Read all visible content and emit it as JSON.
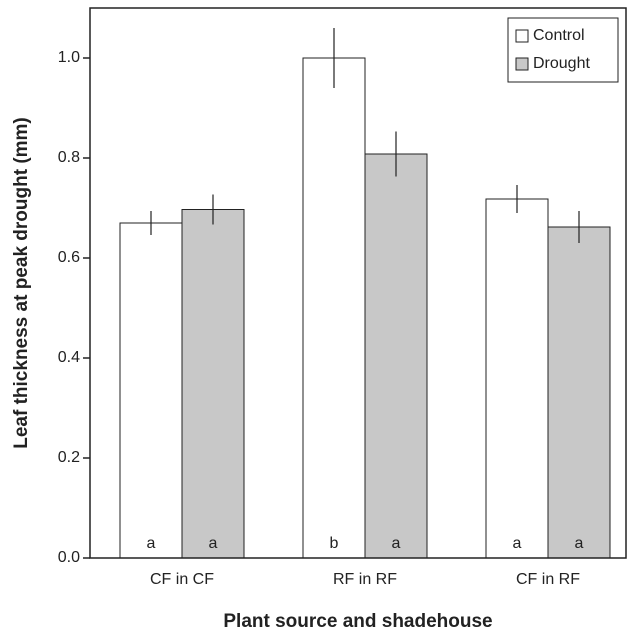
{
  "chart_data": {
    "type": "bar",
    "x_label": "Plant source and shadehouse",
    "y_label": "Leaf thickness at peak drought (mm)",
    "categories": [
      "CF in CF",
      "RF in RF",
      "CF in RF"
    ],
    "series": [
      {
        "name": "Control",
        "color": "#ffffff",
        "values": [
          0.67,
          1.0,
          0.718
        ],
        "errors": [
          0.024,
          0.06,
          0.028
        ],
        "letters": [
          "a",
          "b",
          "a"
        ]
      },
      {
        "name": "Drought",
        "color": "#c8c8c8",
        "values": [
          0.697,
          0.808,
          0.662
        ],
        "errors": [
          0.03,
          0.045,
          0.032
        ],
        "letters": [
          "a",
          "a",
          "a"
        ]
      }
    ],
    "ylim": [
      0,
      1.1
    ],
    "yticks": [
      {
        "value": 0,
        "label": "0.0"
      },
      0.2,
      0.4,
      0.6,
      0.8,
      {
        "value": 1.0,
        "label": "1.0"
      }
    ],
    "legend": "upper right"
  }
}
